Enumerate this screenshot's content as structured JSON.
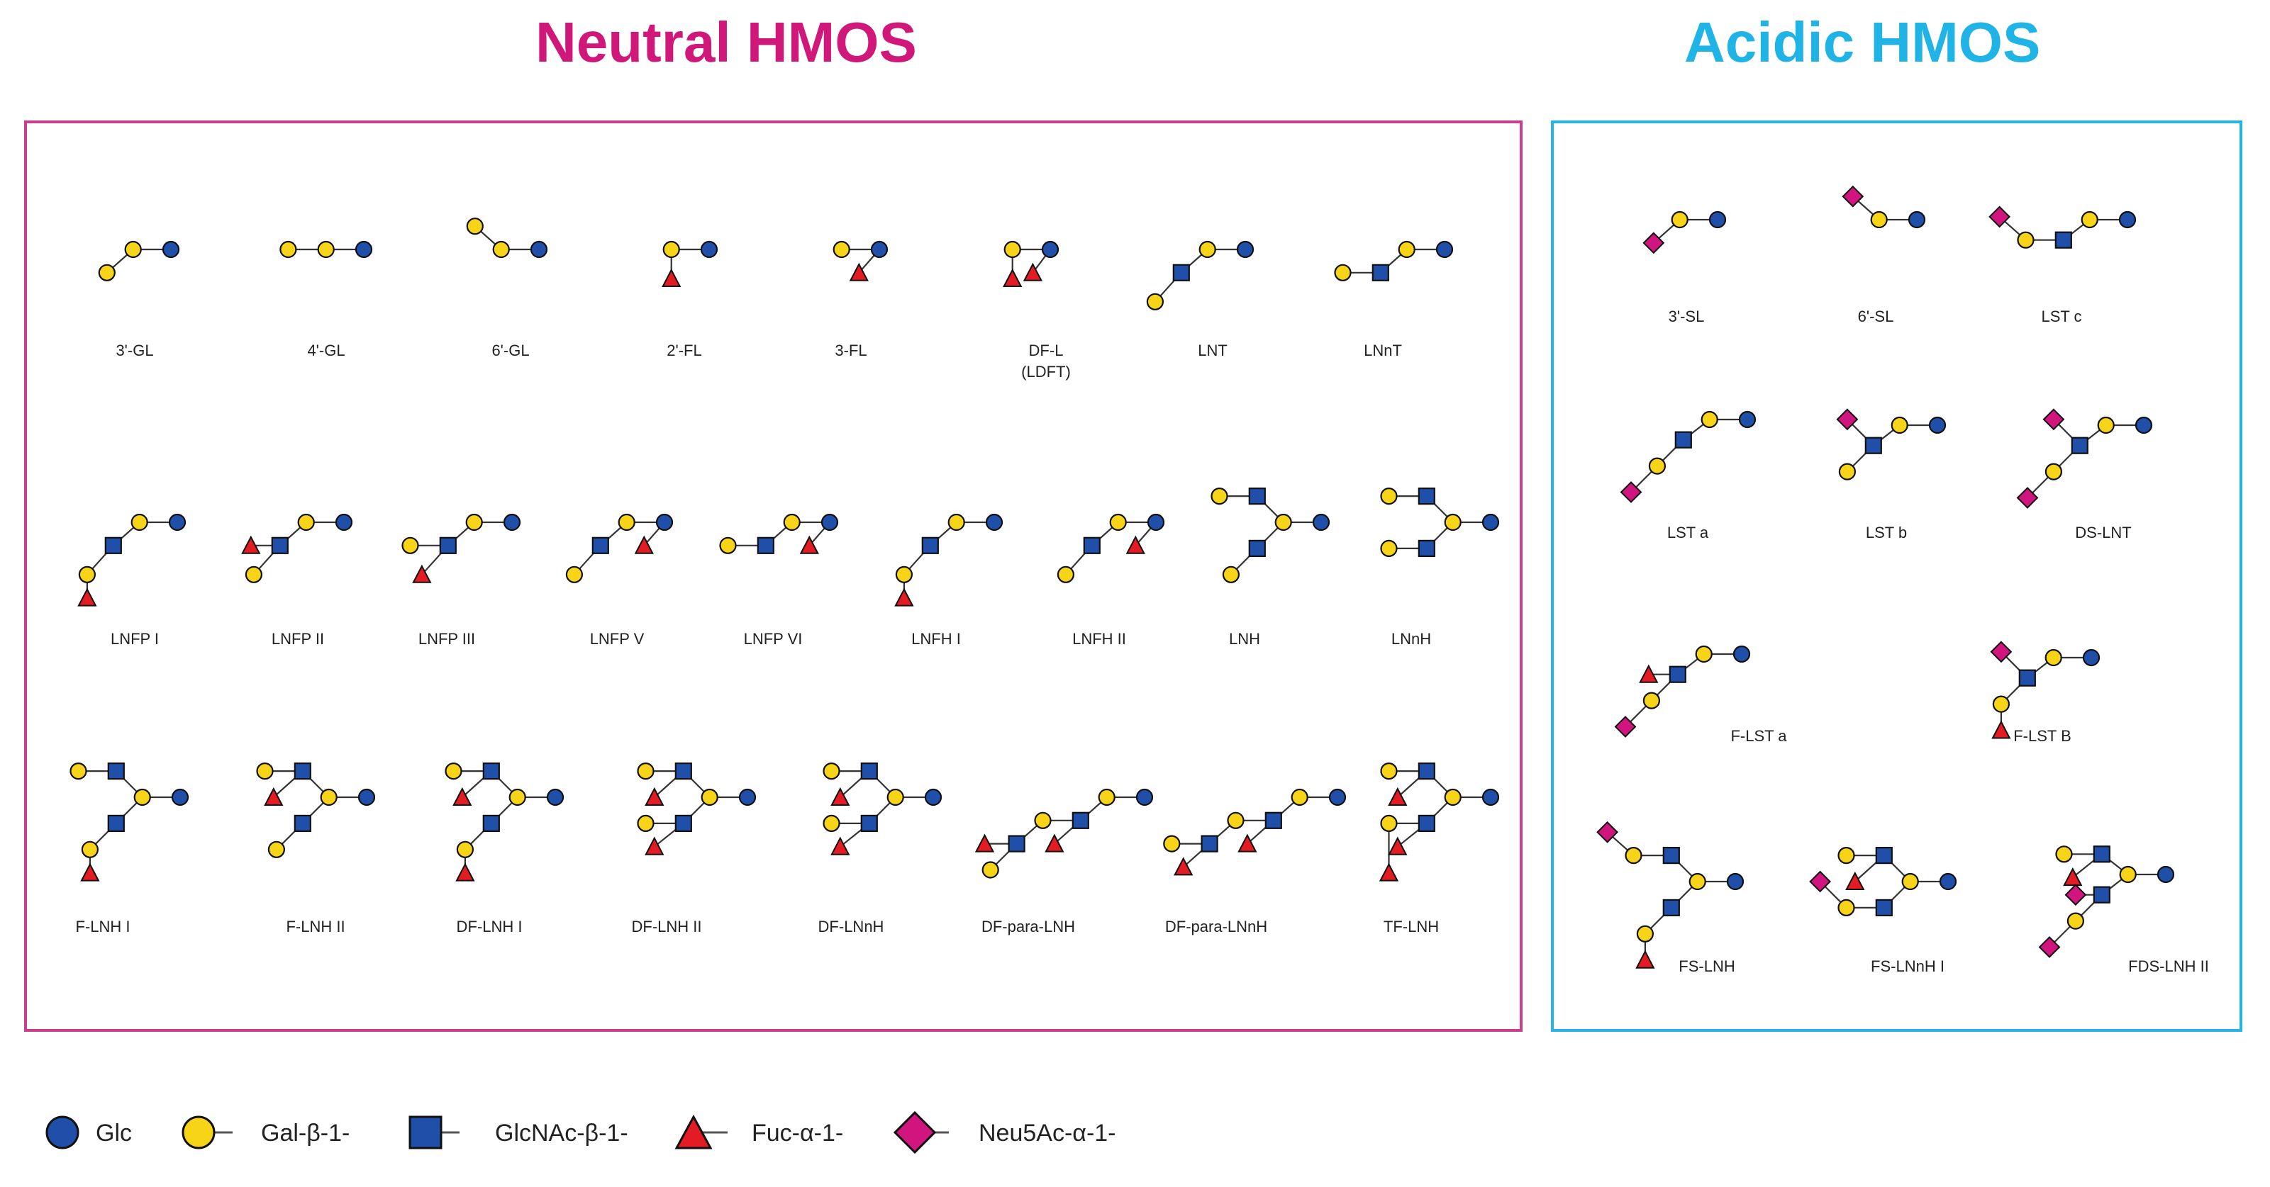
{
  "titles": {
    "neutral": "Neutral HMOS",
    "acidic": "Acidic HMOS"
  },
  "neutral_structures": [
    {
      "name": "3'-GL",
      "label": "3'-GL"
    },
    {
      "name": "4'-GL",
      "label": "4'-GL"
    },
    {
      "name": "6'-GL",
      "label": "6'-GL"
    },
    {
      "name": "2'-FL",
      "label": "2'-FL"
    },
    {
      "name": "3-FL",
      "label": "3-FL"
    },
    {
      "name": "DF-L",
      "label": "DF-L\n(LDFT)"
    },
    {
      "name": "LNT",
      "label": "LNT"
    },
    {
      "name": "LNnT",
      "label": "LNnT"
    },
    {
      "name": "LNFP I",
      "label": "LNFP I"
    },
    {
      "name": "LNFP II",
      "label": "LNFP II"
    },
    {
      "name": "LNFP III",
      "label": "LNFP III"
    },
    {
      "name": "LNFP V",
      "label": "LNFP V"
    },
    {
      "name": "LNFP VI",
      "label": "LNFP VI"
    },
    {
      "name": "LNFH I",
      "label": "LNFH I"
    },
    {
      "name": "LNFH II",
      "label": "LNFH II"
    },
    {
      "name": "LNH",
      "label": "LNH"
    },
    {
      "name": "LNnH",
      "label": "LNnH"
    },
    {
      "name": "F-LNH I",
      "label": "F-LNH I"
    },
    {
      "name": "F-LNH II",
      "label": "F-LNH II"
    },
    {
      "name": "DF-LNH I",
      "label": "DF-LNH I"
    },
    {
      "name": "DF-LNH II",
      "label": "DF-LNH II"
    },
    {
      "name": "DF-LNnH",
      "label": "DF-LNnH"
    },
    {
      "name": "DF-para-LNH",
      "label": "DF-para-LNH"
    },
    {
      "name": "DF-para-LNnH",
      "label": "DF-para-LNnH"
    },
    {
      "name": "TF-LNH",
      "label": "TF-LNH"
    }
  ],
  "acidic_structures": [
    {
      "name": "3'-SL",
      "label": "3'-SL"
    },
    {
      "name": "6'-SL",
      "label": "6'-SL"
    },
    {
      "name": "LST c",
      "label": "LST c"
    },
    {
      "name": "LST a",
      "label": "LST a"
    },
    {
      "name": "LST b",
      "label": "LST b"
    },
    {
      "name": "DS-LNT",
      "label": "DS-LNT"
    },
    {
      "name": "F-LST a",
      "label": "F-LST a"
    },
    {
      "name": "F-LST B",
      "label": "F-LST B"
    },
    {
      "name": "FS-LNH",
      "label": "FS-LNH"
    },
    {
      "name": "FS-LNnH I",
      "label": "FS-LNnH I"
    },
    {
      "name": "FDS-LNH II",
      "label": "FDS-LNH II"
    }
  ],
  "legend": [
    {
      "symbol": "circle-blue",
      "label": "Glc",
      "color": "#1f4fa8"
    },
    {
      "symbol": "circle-yellow",
      "label": "Gal-β-1-",
      "color": "#f7d417"
    },
    {
      "symbol": "square-blue",
      "label": "GlcNAc-β-1-",
      "color": "#1f4fa8"
    },
    {
      "symbol": "triangle-red",
      "label": "Fuc-α-1-",
      "color": "#e31b23"
    },
    {
      "symbol": "diamond-magenta",
      "label": "Neu5Ac-α-1-",
      "color": "#d0157f"
    }
  ],
  "colors": {
    "glc": "#1f4fa8",
    "gal": "#f7d417",
    "glcnac": "#1f4fa8",
    "fuc": "#e31b23",
    "neu5ac": "#d0157f",
    "neutral_accent": "#d0177a",
    "acidic_accent": "#1fb3e6"
  }
}
